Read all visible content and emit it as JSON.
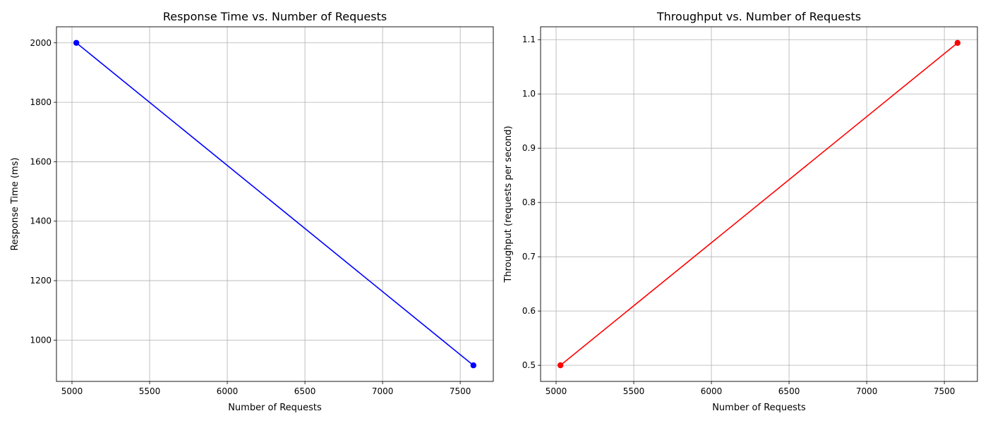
{
  "chart_data": [
    {
      "type": "line",
      "title": "Response Time vs. Number of Requests",
      "xlabel": "Number of Requests",
      "ylabel": "Response Time (ms)",
      "x": [
        5028,
        7585
      ],
      "series": [
        {
          "values": [
            2000,
            915
          ],
          "color": "#0000ff",
          "marker": "circle"
        }
      ],
      "xlim": [
        4900,
        7713
      ],
      "ylim": [
        861,
        2054
      ],
      "xticks": [
        5000,
        5500,
        6000,
        6500,
        7000,
        7500
      ],
      "yticks": [
        1000,
        1200,
        1400,
        1600,
        1800,
        2000
      ],
      "grid": true,
      "legend": "none"
    },
    {
      "type": "line",
      "title": "Throughput vs. Number of Requests",
      "xlabel": "Number of Requests",
      "ylabel": "Throughput (requests per second)",
      "x": [
        5028,
        7585
      ],
      "series": [
        {
          "values": [
            0.5,
            1.094
          ],
          "color": "#ff0000",
          "marker": "circle"
        }
      ],
      "xlim": [
        4900,
        7713
      ],
      "ylim": [
        0.4703,
        1.1237
      ],
      "xticks": [
        5000,
        5500,
        6000,
        6500,
        7000,
        7500
      ],
      "yticks": [
        0.5,
        0.6,
        0.7,
        0.8,
        0.9,
        1.0,
        1.1
      ],
      "ytick_labels": [
        "0.5",
        "0.6",
        "0.7",
        "0.8",
        "0.9",
        "1.0",
        "1.1"
      ],
      "grid": true,
      "legend": "none"
    }
  ]
}
